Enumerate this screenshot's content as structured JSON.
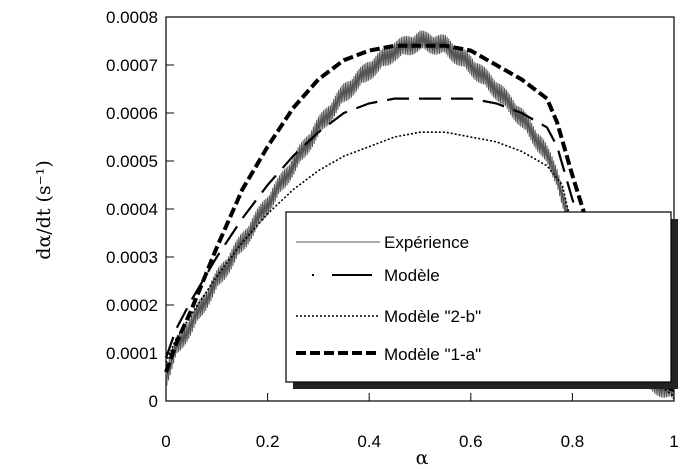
{
  "chart_data": {
    "type": "line",
    "title": "",
    "xlabel": "α",
    "ylabel": "dα/dt (s⁻¹)",
    "xlim": [
      0,
      1
    ],
    "ylim": [
      0,
      0.0008
    ],
    "x_ticks": [
      "0",
      "0.2",
      "0.4",
      "0.6",
      "0.8",
      "1"
    ],
    "y_ticks": [
      "0",
      "0.0001",
      "0.0002",
      "0.0003",
      "0.0004",
      "0.0005",
      "0.0006",
      "0.0007",
      "0.0008"
    ],
    "grid": false,
    "legend_position": "center-right",
    "series": [
      {
        "name": "Expérience",
        "style": "thin-solid-noisy",
        "color": "#555555",
        "x": [
          0,
          0.02,
          0.05,
          0.1,
          0.15,
          0.2,
          0.25,
          0.3,
          0.35,
          0.4,
          0.45,
          0.5,
          0.55,
          0.6,
          0.65,
          0.7,
          0.74,
          0.77,
          0.8,
          0.85,
          0.9,
          0.95,
          1.0
        ],
        "y": [
          5e-05,
          0.00011,
          0.00016,
          0.00025,
          0.00033,
          0.00041,
          0.00049,
          0.00057,
          0.00064,
          0.00069,
          0.00073,
          0.00075,
          0.00074,
          0.0007,
          0.00065,
          0.00059,
          0.00053,
          0.00047,
          0.00034,
          0.0002,
          0.0001,
          4e-05,
          2e-05
        ]
      },
      {
        "name": "Modèle",
        "style": "long-dash",
        "color": "#000000",
        "x": [
          0,
          0.02,
          0.05,
          0.1,
          0.15,
          0.2,
          0.25,
          0.3,
          0.35,
          0.4,
          0.45,
          0.5,
          0.55,
          0.6,
          0.65,
          0.7,
          0.75,
          0.77,
          0.8,
          0.85,
          0.9,
          0.95,
          1.0
        ],
        "y": [
          9e-05,
          0.00015,
          0.00021,
          0.0003,
          0.00038,
          0.00045,
          0.00051,
          0.00056,
          0.0006,
          0.00062,
          0.00063,
          0.00063,
          0.00063,
          0.00063,
          0.00062,
          0.0006,
          0.00057,
          0.00053,
          0.00042,
          0.00027,
          0.00014,
          6e-05,
          2e-05
        ]
      },
      {
        "name": "Modèle \"2-b\"",
        "style": "dotted",
        "color": "#000000",
        "x": [
          0,
          0.02,
          0.05,
          0.1,
          0.15,
          0.2,
          0.25,
          0.3,
          0.35,
          0.4,
          0.45,
          0.5,
          0.55,
          0.6,
          0.65,
          0.7,
          0.75,
          0.78,
          0.8,
          0.85,
          0.9,
          0.95,
          1.0
        ],
        "y": [
          8e-05,
          0.00013,
          0.00018,
          0.00026,
          0.00033,
          0.00039,
          0.00044,
          0.00048,
          0.00051,
          0.00053,
          0.00055,
          0.00056,
          0.00056,
          0.00055,
          0.00054,
          0.00052,
          0.00049,
          0.00045,
          0.00036,
          0.00023,
          0.00012,
          5e-05,
          1e-05
        ]
      },
      {
        "name": "Modèle \"1-a\"",
        "style": "bold-dash",
        "color": "#000000",
        "x": [
          0,
          0.02,
          0.05,
          0.1,
          0.15,
          0.2,
          0.25,
          0.3,
          0.35,
          0.4,
          0.45,
          0.5,
          0.55,
          0.6,
          0.65,
          0.7,
          0.75,
          0.77,
          0.8,
          0.85,
          0.9,
          0.95,
          1.0
        ],
        "y": [
          6e-05,
          0.00012,
          0.00019,
          0.00032,
          0.00044,
          0.00053,
          0.00061,
          0.00067,
          0.00071,
          0.00073,
          0.00074,
          0.00074,
          0.00074,
          0.00073,
          0.0007,
          0.00067,
          0.00063,
          0.00058,
          0.00047,
          0.0003,
          0.00015,
          6e-05,
          2e-05
        ]
      }
    ]
  }
}
